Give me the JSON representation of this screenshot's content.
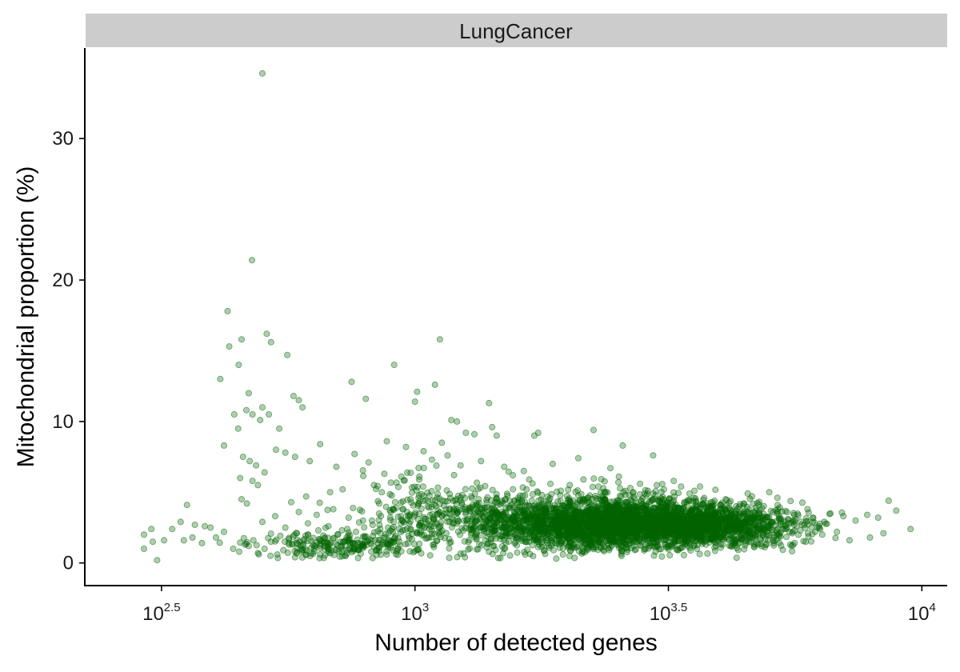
{
  "chart_data": {
    "type": "scatter",
    "facet": "LungCancer",
    "xlabel": "Number of detected genes",
    "ylabel": "Mitochondrial proportion (%)",
    "x_scale": "log10",
    "xlim": [
      224,
      11220
    ],
    "ylim": [
      -1.6,
      36.4
    ],
    "x_ticks": [
      {
        "value": 316.23,
        "base": "10",
        "exp": "2.5"
      },
      {
        "value": 1000,
        "base": "10",
        "exp": "3"
      },
      {
        "value": 3162.28,
        "base": "10",
        "exp": "3.5"
      },
      {
        "value": 10000,
        "base": "10",
        "exp": "4"
      }
    ],
    "y_ticks": [
      0,
      10,
      20,
      30
    ],
    "grid": false,
    "legend": "none",
    "point_color": "#006400",
    "point_opacity": 0.32,
    "points": [
      [
        500,
        34.6
      ],
      [
        477,
        21.4
      ],
      [
        427,
        17.8
      ],
      [
        430,
        15.3
      ],
      [
        455,
        15.8
      ],
      [
        449,
        14.0
      ],
      [
        413,
        13.0
      ],
      [
        510,
        16.2
      ],
      [
        520,
        15.6
      ],
      [
        560,
        14.7
      ],
      [
        590,
        11.5
      ],
      [
        600,
        11.0
      ],
      [
        576,
        11.8
      ],
      [
        750,
        12.8
      ],
      [
        910,
        14.0
      ],
      [
        1120,
        15.8
      ],
      [
        1095,
        12.6
      ],
      [
        1010,
        12.1
      ],
      [
        800,
        11.6
      ],
      [
        1000,
        11.4
      ],
      [
        1400,
        11.3
      ],
      [
        470,
        12.0
      ],
      [
        440,
        10.5
      ],
      [
        448,
        9.5
      ],
      [
        465,
        10.8
      ],
      [
        478,
        10.5
      ],
      [
        500,
        11.0
      ],
      [
        495,
        10.1
      ],
      [
        515,
        10.5
      ],
      [
        540,
        9.5
      ],
      [
        1180,
        10.1
      ],
      [
        1210,
        10.0
      ],
      [
        1260,
        9.2
      ],
      [
        1420,
        9.6
      ],
      [
        1450,
        9.0
      ],
      [
        1310,
        9.1
      ],
      [
        1720,
        9.0
      ],
      [
        1750,
        9.2
      ],
      [
        2250,
        9.4
      ],
      [
        2570,
        8.3
      ],
      [
        2430,
        6.7
      ],
      [
        2950,
        7.6
      ],
      [
        2100,
        7.4
      ],
      [
        1870,
        7.0
      ],
      [
        3650,
        5.4
      ],
      [
        5000,
        5.0
      ],
      [
        420,
        8.3
      ],
      [
        458,
        7.5
      ],
      [
        472,
        7.2
      ],
      [
        486,
        6.9
      ],
      [
        452,
        6.0
      ],
      [
        455,
        4.5
      ],
      [
        466,
        4.2
      ],
      [
        478,
        5.8
      ],
      [
        490,
        5.5
      ],
      [
        505,
        6.4
      ],
      [
        532,
        8.0
      ],
      [
        555,
        7.8
      ],
      [
        580,
        7.5
      ],
      [
        620,
        7.2
      ],
      [
        650,
        8.4
      ],
      [
        700,
        6.8
      ],
      [
        760,
        7.7
      ],
      [
        810,
        7.1
      ],
      [
        880,
        8.6
      ],
      [
        960,
        8.2
      ],
      [
        1040,
        7.9
      ],
      [
        1080,
        7.3
      ],
      [
        1130,
        8.5
      ],
      [
        1160,
        7.6
      ],
      [
        1230,
        6.9
      ],
      [
        1350,
        7.2
      ],
      [
        1500,
        6.8
      ],
      [
        1560,
        6.2
      ],
      [
        1640,
        6.5
      ],
      [
        1680,
        5.9
      ],
      [
        940,
        6.1
      ],
      [
        870,
        6.3
      ],
      [
        830,
        5.5
      ],
      [
        720,
        5.2
      ],
      [
        680,
        5.0
      ],
      [
        610,
        4.7
      ],
      [
        570,
        4.3
      ],
      [
        590,
        3.6
      ],
      [
        640,
        3.4
      ],
      [
        690,
        3.8
      ],
      [
        740,
        3.2
      ],
      [
        790,
        3.0
      ],
      [
        850,
        4.2
      ],
      [
        920,
        3.9
      ],
      [
        980,
        4.5
      ],
      [
        1060,
        4.0
      ],
      [
        1110,
        3.7
      ],
      [
        1190,
        4.4
      ],
      [
        1240,
        4.8
      ],
      [
        1300,
        4.1
      ],
      [
        1370,
        3.9
      ],
      [
        1440,
        4.3
      ],
      [
        1520,
        4.9
      ],
      [
        1600,
        4.6
      ],
      [
        1660,
        5.2
      ],
      [
        1700,
        4.4
      ],
      [
        1780,
        4.8
      ],
      [
        1850,
        5.6
      ],
      [
        1940,
        5.1
      ],
      [
        2020,
        5.5
      ],
      [
        2150,
        5.9
      ],
      [
        2300,
        5.4
      ],
      [
        2380,
        5.0
      ],
      [
        2520,
        5.7
      ],
      [
        2660,
        5.3
      ],
      [
        2780,
        5.6
      ],
      [
        2880,
        5.1
      ],
      [
        3000,
        5.5
      ],
      [
        3100,
        5.2
      ],
      [
        3240,
        5.8
      ],
      [
        3350,
        5.4
      ],
      [
        3480,
        4.9
      ],
      [
        3560,
        5.1
      ],
      [
        3720,
        4.6
      ],
      [
        3900,
        4.4
      ],
      [
        4100,
        4.5
      ],
      [
        4300,
        4.0
      ],
      [
        4450,
        4.2
      ],
      [
        4700,
        3.9
      ],
      [
        5200,
        3.8
      ],
      [
        5600,
        3.4
      ],
      [
        6100,
        3.2
      ],
      [
        6600,
        3.5
      ],
      [
        7000,
        3.3
      ],
      [
        7400,
        3.0
      ],
      [
        7800,
        3.4
      ],
      [
        8200,
        3.2
      ],
      [
        8600,
        4.4
      ],
      [
        8900,
        3.7
      ],
      [
        9500,
        2.4
      ],
      [
        8400,
        2.1
      ],
      [
        7900,
        1.8
      ],
      [
        7200,
        1.6
      ],
      [
        6800,
        2.2
      ],
      [
        6300,
        2.4
      ],
      [
        5900,
        1.5
      ],
      [
        5500,
        1.3
      ],
      [
        5100,
        1.4
      ],
      [
        4800,
        1.7
      ],
      [
        292,
        2.0
      ],
      [
        302,
        2.4
      ],
      [
        304,
        1.5
      ],
      [
        292,
        1.0
      ],
      [
        320,
        1.6
      ],
      [
        332,
        2.4
      ],
      [
        350,
        1.6
      ],
      [
        364,
        1.8
      ],
      [
        380,
        1.4
      ],
      [
        395,
        2.5
      ],
      [
        405,
        1.8
      ],
      [
        420,
        2.2
      ],
      [
        438,
        1.0
      ],
      [
        450,
        0.8
      ],
      [
        310,
        0.2
      ],
      [
        355,
        4.1
      ],
      [
        345,
        2.9
      ],
      [
        368,
        2.7
      ],
      [
        385,
        2.6
      ],
      [
        462,
        1.3
      ],
      [
        470,
        1.2
      ],
      [
        480,
        1.6
      ],
      [
        490,
        0.7
      ],
      [
        505,
        1.0
      ],
      [
        520,
        1.5
      ],
      [
        535,
        0.6
      ],
      [
        550,
        0.9
      ],
      [
        565,
        1.3
      ],
      [
        580,
        0.4
      ],
      [
        600,
        0.9
      ],
      [
        625,
        1.1
      ],
      [
        650,
        0.6
      ],
      [
        672,
        1.4
      ],
      [
        700,
        0.9
      ],
      [
        730,
        0.5
      ],
      [
        760,
        1.0
      ],
      [
        790,
        1.3
      ],
      [
        820,
        0.8
      ],
      [
        850,
        1.1
      ],
      [
        880,
        0.6
      ],
      [
        1400,
        0.8
      ],
      [
        1500,
        1.0
      ],
      [
        1650,
        0.6
      ],
      [
        1800,
        0.9
      ],
      [
        500,
        2.9
      ],
      [
        530,
        3.3
      ],
      [
        555,
        2.5
      ],
      [
        585,
        2.1
      ],
      [
        615,
        2.8
      ],
      [
        645,
        2.3
      ],
      [
        675,
        2.6
      ],
      [
        705,
        2.0
      ],
      [
        735,
        2.4
      ],
      [
        765,
        2.2
      ],
      [
        795,
        1.9
      ],
      [
        825,
        2.7
      ],
      [
        855,
        2.1
      ],
      [
        885,
        2.5
      ],
      [
        915,
        1.9
      ],
      [
        945,
        2.3
      ],
      [
        975,
        2.8
      ],
      [
        1010,
        2.2
      ],
      [
        1050,
        3.1
      ],
      [
        1090,
        2.6
      ],
      [
        1130,
        3.3
      ],
      [
        1170,
        2.9
      ],
      [
        1210,
        3.5
      ],
      [
        1250,
        3.0
      ],
      [
        1290,
        2.4
      ],
      [
        1330,
        3.6
      ],
      [
        1370,
        2.8
      ],
      [
        1410,
        3.2
      ],
      [
        1450,
        2.6
      ],
      [
        1490,
        3.4
      ],
      [
        1530,
        2.1
      ],
      [
        1570,
        3.0
      ],
      [
        1610,
        2.5
      ],
      [
        1650,
        3.7
      ],
      [
        1690,
        2.9
      ],
      [
        1730,
        3.3
      ],
      [
        1770,
        2.2
      ],
      [
        1810,
        3.9
      ],
      [
        1850,
        2.7
      ],
      [
        1890,
        3.1
      ],
      [
        1930,
        2.4
      ],
      [
        1970,
        3.5
      ],
      [
        2010,
        2.8
      ],
      [
        2060,
        3.2
      ],
      [
        2110,
        2.0
      ],
      [
        2160,
        3.6
      ],
      [
        2210,
        2.6
      ],
      [
        2260,
        3.0
      ],
      [
        2310,
        1.9
      ],
      [
        2360,
        3.4
      ],
      [
        2410,
        2.3
      ],
      [
        2460,
        3.8
      ],
      [
        2510,
        2.7
      ],
      [
        2560,
        3.1
      ],
      [
        2610,
        2.2
      ],
      [
        2660,
        3.5
      ],
      [
        2710,
        2.5
      ],
      [
        2760,
        3.9
      ],
      [
        2810,
        2.8
      ],
      [
        2860,
        3.2
      ],
      [
        2910,
        2.1
      ],
      [
        2960,
        3.6
      ],
      [
        3010,
        2.6
      ],
      [
        3060,
        3.0
      ],
      [
        3110,
        2.3
      ],
      [
        3160,
        3.4
      ],
      [
        3210,
        2.7
      ],
      [
        3260,
        3.8
      ],
      [
        3310,
        2.4
      ],
      [
        3360,
        3.1
      ],
      [
        3410,
        2.9
      ],
      [
        3460,
        3.5
      ],
      [
        3510,
        2.2
      ],
      [
        3560,
        3.3
      ],
      [
        3610,
        2.6
      ],
      [
        3660,
        3.0
      ],
      [
        3710,
        2.5
      ],
      [
        3760,
        3.4
      ],
      [
        3810,
        2.8
      ],
      [
        3860,
        3.2
      ],
      [
        3910,
        2.4
      ],
      [
        3960,
        2.9
      ],
      [
        4060,
        3.1
      ],
      [
        4160,
        2.7
      ],
      [
        4260,
        3.0
      ],
      [
        4360,
        2.5
      ],
      [
        4460,
        2.9
      ],
      [
        4560,
        2.6
      ],
      [
        4660,
        3.1
      ],
      [
        4760,
        2.4
      ],
      [
        4860,
        2.8
      ],
      [
        4960,
        2.5
      ],
      [
        5060,
        2.9
      ],
      [
        5160,
        2.3
      ],
      [
        5260,
        2.7
      ],
      [
        5360,
        2.4
      ],
      [
        5460,
        2.8
      ],
      [
        5560,
        2.2
      ],
      [
        5660,
        2.6
      ],
      [
        5760,
        2.3
      ],
      [
        5860,
        2.7
      ],
      [
        5960,
        2.1
      ],
      [
        6060,
        2.5
      ],
      [
        6160,
        2.2
      ],
      [
        6260,
        2.6
      ],
      [
        6360,
        2.0
      ],
      [
        2200,
        4.3
      ],
      [
        2350,
        4.6
      ],
      [
        2500,
        4.1
      ],
      [
        2650,
        4.8
      ],
      [
        2800,
        4.4
      ],
      [
        2950,
        4.9
      ],
      [
        3100,
        4.5
      ],
      [
        3250,
        4.7
      ],
      [
        3400,
        4.3
      ],
      [
        3550,
        4.6
      ],
      [
        3700,
        4.2
      ],
      [
        3850,
        4.0
      ],
      [
        4000,
        4.1
      ],
      [
        2400,
        1.3
      ],
      [
        2550,
        1.1
      ],
      [
        2700,
        1.2
      ],
      [
        2850,
        1.0
      ],
      [
        3000,
        1.2
      ],
      [
        3150,
        1.1
      ],
      [
        3300,
        0.9
      ],
      [
        3450,
        1.2
      ],
      [
        3600,
        1.0
      ],
      [
        3750,
        1.3
      ],
      [
        3900,
        1.1
      ],
      [
        4050,
        1.3
      ],
      [
        4200,
        1.2
      ],
      [
        4350,
        1.4
      ],
      [
        1950,
        1.4
      ],
      [
        2050,
        1.2
      ],
      [
        2150,
        1.6
      ],
      [
        1750,
        1.5
      ],
      [
        1600,
        1.7
      ]
    ],
    "dense_regions": [
      {
        "x_center": 2700,
        "x_sd_log10": 0.12,
        "y_center": 2.8,
        "y_sd": 0.85,
        "count": 2200
      },
      {
        "x_center": 1900,
        "x_sd_log10": 0.11,
        "y_center": 2.9,
        "y_sd": 1.0,
        "count": 700
      },
      {
        "x_center": 4000,
        "x_sd_log10": 0.08,
        "y_center": 2.6,
        "y_sd": 0.7,
        "count": 600
      },
      {
        "x_center": 1150,
        "x_sd_log10": 0.1,
        "y_center": 3.4,
        "y_sd": 1.3,
        "count": 300
      },
      {
        "x_center": 720,
        "x_sd_log10": 0.09,
        "y_center": 1.3,
        "y_sd": 0.45,
        "count": 220
      }
    ]
  }
}
